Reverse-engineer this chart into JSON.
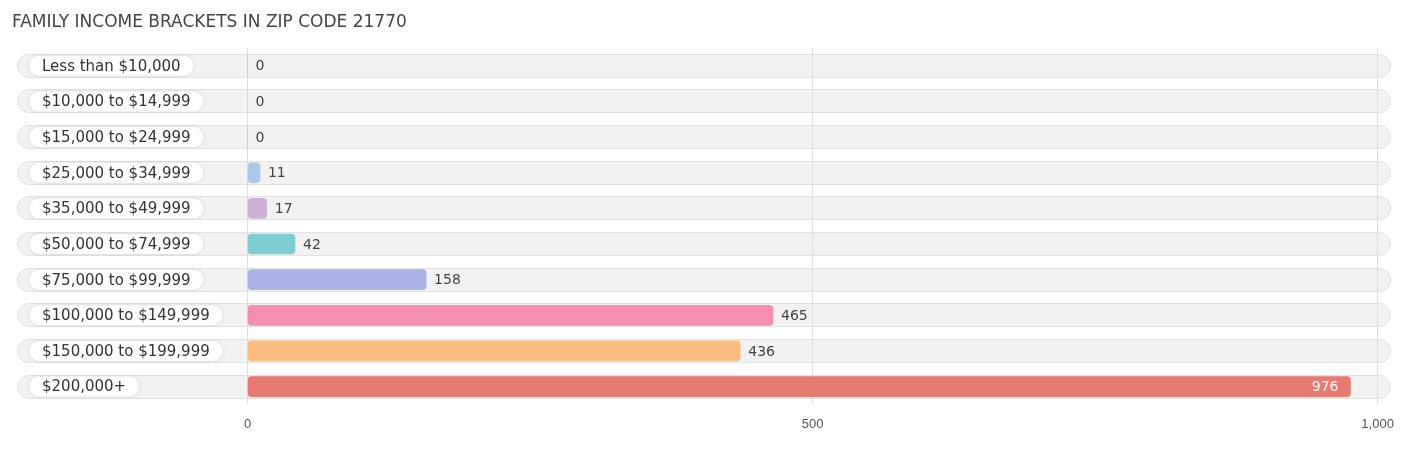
{
  "chart_data": {
    "type": "bar",
    "orientation": "horizontal",
    "title": "FAMILY INCOME BRACKETS IN ZIP CODE 21770",
    "categories": [
      "Less than $10,000",
      "$10,000 to $14,999",
      "$15,000 to $24,999",
      "$25,000 to $34,999",
      "$35,000 to $49,999",
      "$50,000 to $74,999",
      "$75,000 to $99,999",
      "$100,000 to $149,999",
      "$150,000 to $199,999",
      "$200,000+"
    ],
    "values": [
      0,
      0,
      0,
      11,
      17,
      42,
      158,
      465,
      436,
      976
    ],
    "colors": [
      "#f7a8c4",
      "#fbcb9e",
      "#f2b1a8",
      "#a9c8ea",
      "#cdb2d6",
      "#7dcdd2",
      "#aab3e8",
      "#f48fb1",
      "#fbbd7f",
      "#e8796f"
    ],
    "xlim": [
      -204,
      1012
    ],
    "xticks": [
      0,
      500,
      {
        "value": 1000,
        "label": "1,000"
      }
    ],
    "grid": "x",
    "data_labels": true
  }
}
